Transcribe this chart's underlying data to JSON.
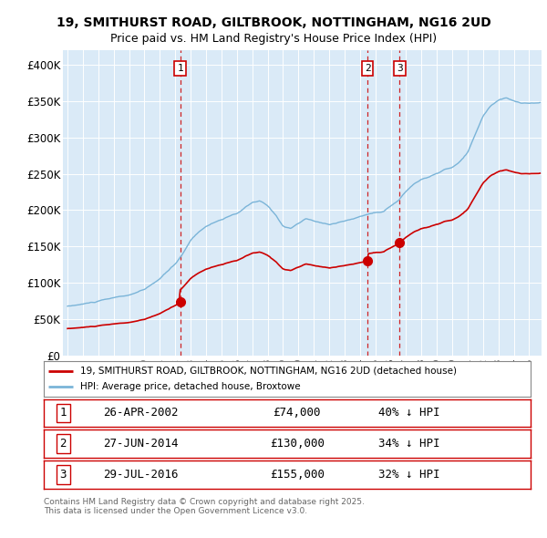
{
  "title": "19, SMITHURST ROAD, GILTBROOK, NOTTINGHAM, NG16 2UD",
  "subtitle": "Price paid vs. HM Land Registry's House Price Index (HPI)",
  "bg_color": "#daeaf7",
  "hpi_color": "#7ab4d8",
  "sale_color": "#cc0000",
  "ylim": [
    0,
    420000
  ],
  "yticks": [
    0,
    50000,
    100000,
    150000,
    200000,
    250000,
    300000,
    350000,
    400000
  ],
  "ytick_labels": [
    "£0",
    "£50K",
    "£100K",
    "£150K",
    "£200K",
    "£250K",
    "£300K",
    "£350K",
    "£400K"
  ],
  "sale_dates": [
    2002.32,
    2014.49,
    2016.58
  ],
  "sale_prices": [
    74000,
    130000,
    155000
  ],
  "sale_labels": [
    "1",
    "2",
    "3"
  ],
  "legend_entries": [
    "19, SMITHURST ROAD, GILTBROOK, NOTTINGHAM, NG16 2UD (detached house)",
    "HPI: Average price, detached house, Broxtowe"
  ],
  "table_rows": [
    [
      "1",
      "26-APR-2002",
      "£74,000",
      "40% ↓ HPI"
    ],
    [
      "2",
      "27-JUN-2014",
      "£130,000",
      "34% ↓ HPI"
    ],
    [
      "3",
      "29-JUL-2016",
      "£155,000",
      "32% ↓ HPI"
    ]
  ],
  "footnote": "Contains HM Land Registry data © Crown copyright and database right 2025.\nThis data is licensed under the Open Government Licence v3.0.",
  "xlim_start": 1994.7,
  "xlim_end": 2025.8
}
